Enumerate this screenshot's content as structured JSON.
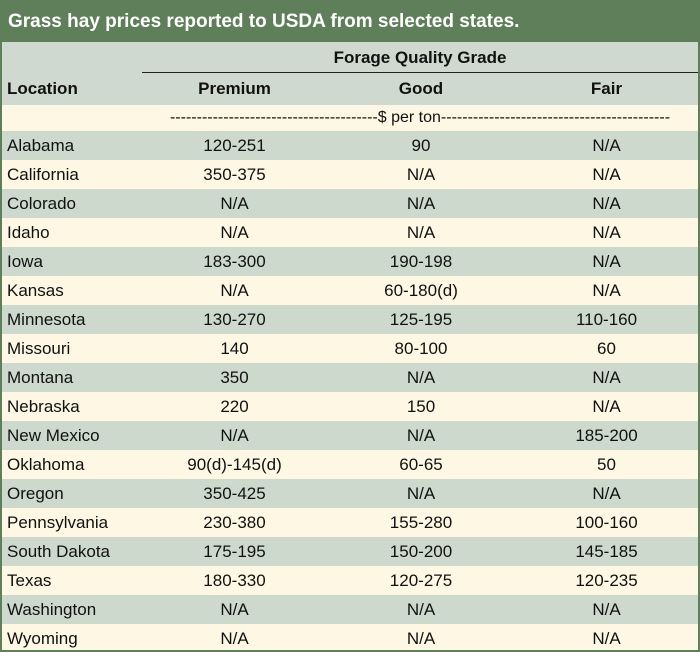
{
  "title": "Grass hay prices reported to USDA from selected states.",
  "group_header": "Forage Quality Grade",
  "columns": [
    "Location",
    "Premium",
    "Good",
    "Fair"
  ],
  "unit_row": "---------------------------------------$ per ton-------------------------------------------",
  "rows": [
    [
      "Alabama",
      "120-251",
      "90",
      "N/A"
    ],
    [
      "California",
      "350-375",
      "N/A",
      "N/A"
    ],
    [
      "Colorado",
      "N/A",
      "N/A",
      "N/A"
    ],
    [
      "Idaho",
      "N/A",
      "N/A",
      "N/A"
    ],
    [
      "Iowa",
      "183-300",
      "190-198",
      "N/A"
    ],
    [
      "Kansas",
      "N/A",
      "60-180(d)",
      "N/A"
    ],
    [
      "Minnesota",
      "130-270",
      "125-195",
      "110-160"
    ],
    [
      "Missouri",
      "140",
      "80-100",
      "60"
    ],
    [
      "Montana",
      "350",
      "N/A",
      "N/A"
    ],
    [
      "Nebraska",
      "220",
      "150",
      "N/A"
    ],
    [
      "New Mexico",
      "N/A",
      "N/A",
      "185-200"
    ],
    [
      "Oklahoma",
      "90(d)-145(d)",
      "60-65",
      "50"
    ],
    [
      "Oregon",
      "350-425",
      "N/A",
      "N/A"
    ],
    [
      "Pennsylvania",
      "230-380",
      "155-280",
      "100-160"
    ],
    [
      "South Dakota",
      "175-195",
      "150-200",
      "145-185"
    ],
    [
      "Texas",
      "180-330",
      "120-275",
      "120-235"
    ],
    [
      "Washington",
      "N/A",
      "N/A",
      "N/A"
    ],
    [
      "Wyoming",
      "N/A",
      "N/A",
      "N/A"
    ]
  ],
  "colors": {
    "title_bg": "#5f7e5a",
    "band": "#cdd9cd",
    "background": "#fdf7e3"
  }
}
